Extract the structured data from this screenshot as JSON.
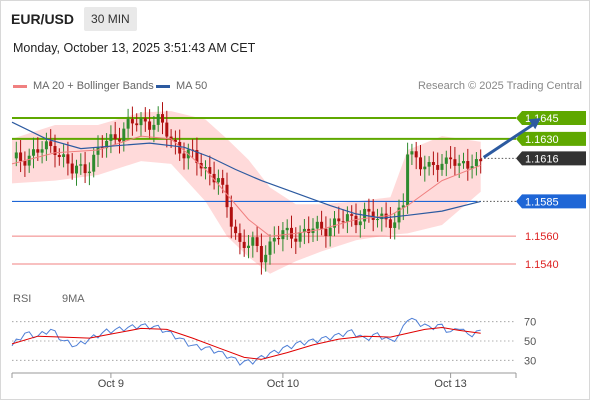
{
  "header": {
    "symbol": "EUR/USD",
    "timeframe": "30 MIN"
  },
  "datetime": "Monday, October 13, 2025 3:51:43 AM CET",
  "legend": [
    {
      "label": "MA 20 + Bollinger Bands",
      "color": "#f08080"
    },
    {
      "label": "MA 50",
      "color": "#2c5aa0"
    }
  ],
  "copyright": "Research © 2025 Trading Central",
  "rsi_legend": [
    {
      "label": "RSI",
      "color": "#4f7fd6"
    },
    {
      "label": "9MA",
      "color": "#e00000"
    }
  ],
  "colors": {
    "up": "#2e8b2e",
    "down": "#b01010",
    "bollinger": "#ffd6d6",
    "resistance": "#5fa800",
    "support_blue": "#1e66d6",
    "support_red": "#f08080",
    "current": "#333333",
    "arrow": "#2c5aa0"
  },
  "chart_data": [
    {
      "type": "candlestick",
      "title": "EUR/USD",
      "timeframe": "30 MIN",
      "ylim": [
        1.1527,
        1.1658
      ],
      "x_ticks": [
        "Oct 9",
        "Oct 10",
        "Oct 13"
      ],
      "current_price": "1.1616",
      "price_levels": [
        {
          "label": "1.1645",
          "value": 1.1645,
          "kind": "resistance"
        },
        {
          "label": "1.1630",
          "value": 1.163,
          "kind": "resistance"
        },
        {
          "label": "1.1616",
          "value": 1.1616,
          "kind": "current"
        },
        {
          "label": "1.1585",
          "value": 1.1585,
          "kind": "pivot"
        },
        {
          "label": "1.1560",
          "value": 1.156,
          "kind": "support"
        },
        {
          "label": "1.1540",
          "value": 1.154,
          "kind": "support"
        }
      ],
      "close_path": [
        [
          0,
          1.1613
        ],
        [
          5,
          1.162
        ],
        [
          10,
          1.1625
        ],
        [
          14,
          1.1606
        ],
        [
          18,
          1.1612
        ],
        [
          22,
          1.1628
        ],
        [
          26,
          1.1637
        ],
        [
          30,
          1.1643
        ],
        [
          34,
          1.1642
        ],
        [
          37,
          1.163
        ],
        [
          40,
          1.162
        ],
        [
          44,
          1.1612
        ],
        [
          48,
          1.16
        ],
        [
          50,
          1.158
        ],
        [
          53,
          1.1555
        ],
        [
          56,
          1.1553
        ],
        [
          58,
          1.1546
        ],
        [
          61,
          1.1559
        ],
        [
          66,
          1.1562
        ],
        [
          70,
          1.1564
        ],
        [
          74,
          1.1568
        ],
        [
          78,
          1.1572
        ],
        [
          82,
          1.1576
        ],
        [
          85,
          1.1571
        ],
        [
          87,
          1.1576
        ],
        [
          89,
          1.1568
        ],
        [
          91,
          1.1582
        ],
        [
          92,
          1.162
        ],
        [
          94,
          1.1618
        ],
        [
          97,
          1.1607
        ],
        [
          100,
          1.1612
        ],
        [
          102,
          1.162
        ],
        [
          104,
          1.1607
        ],
        [
          107,
          1.1613
        ],
        [
          109,
          1.1616
        ]
      ],
      "ma20": [
        [
          0,
          1.1612
        ],
        [
          10,
          1.162
        ],
        [
          20,
          1.1622
        ],
        [
          30,
          1.1632
        ],
        [
          37,
          1.163
        ],
        [
          45,
          1.1608
        ],
        [
          50,
          1.159
        ],
        [
          55,
          1.1572
        ],
        [
          60,
          1.156
        ],
        [
          66,
          1.1562
        ],
        [
          72,
          1.1565
        ],
        [
          80,
          1.1572
        ],
        [
          88,
          1.1575
        ],
        [
          92,
          1.1582
        ],
        [
          100,
          1.16
        ],
        [
          109,
          1.1611
        ]
      ],
      "bollinger_upper": [
        [
          0,
          1.163
        ],
        [
          10,
          1.164
        ],
        [
          20,
          1.164
        ],
        [
          30,
          1.1649
        ],
        [
          37,
          1.165
        ],
        [
          45,
          1.1644
        ],
        [
          50,
          1.163
        ],
        [
          55,
          1.1615
        ],
        [
          60,
          1.1595
        ],
        [
          66,
          1.1583
        ],
        [
          72,
          1.1583
        ],
        [
          80,
          1.1585
        ],
        [
          88,
          1.1588
        ],
        [
          92,
          1.1622
        ],
        [
          100,
          1.1632
        ],
        [
          109,
          1.1628
        ]
      ],
      "bollinger_lower": [
        [
          0,
          1.1598
        ],
        [
          10,
          1.16
        ],
        [
          20,
          1.1604
        ],
        [
          30,
          1.1614
        ],
        [
          37,
          1.1612
        ],
        [
          45,
          1.1585
        ],
        [
          50,
          1.156
        ],
        [
          55,
          1.1545
        ],
        [
          60,
          1.1533
        ],
        [
          66,
          1.1542
        ],
        [
          72,
          1.1549
        ],
        [
          80,
          1.1557
        ],
        [
          88,
          1.1561
        ],
        [
          92,
          1.1562
        ],
        [
          100,
          1.1568
        ],
        [
          109,
          1.1592
        ]
      ],
      "ma50": [
        [
          0,
          1.1642
        ],
        [
          8,
          1.163
        ],
        [
          16,
          1.1623
        ],
        [
          24,
          1.1625
        ],
        [
          32,
          1.1627
        ],
        [
          40,
          1.1624
        ],
        [
          46,
          1.1617
        ],
        [
          52,
          1.1608
        ],
        [
          58,
          1.16
        ],
        [
          66,
          1.1591
        ],
        [
          74,
          1.1582
        ],
        [
          80,
          1.1576
        ],
        [
          86,
          1.1573
        ],
        [
          92,
          1.1575
        ],
        [
          100,
          1.1578
        ],
        [
          109,
          1.1585
        ]
      ],
      "forecast_arrow": {
        "from": [
          109,
          1.1616
        ],
        "to": [
          123,
          1.1645
        ]
      }
    },
    {
      "type": "line",
      "title": "RSI",
      "ylim": [
        20,
        80
      ],
      "yticks": [
        30,
        50,
        70
      ],
      "series": [
        {
          "name": "RSI",
          "values": [
            [
              0,
              45
            ],
            [
              3,
              58
            ],
            [
              6,
              55
            ],
            [
              9,
              62
            ],
            [
              12,
              50
            ],
            [
              15,
              45
            ],
            [
              18,
              52
            ],
            [
              22,
              60
            ],
            [
              26,
              63
            ],
            [
              30,
              66
            ],
            [
              34,
              64
            ],
            [
              38,
              55
            ],
            [
              42,
              45
            ],
            [
              46,
              42
            ],
            [
              50,
              35
            ],
            [
              53,
              28
            ],
            [
              56,
              29
            ],
            [
              59,
              35
            ],
            [
              63,
              42
            ],
            [
              67,
              48
            ],
            [
              71,
              51
            ],
            [
              75,
              55
            ],
            [
              79,
              60
            ],
            [
              82,
              52
            ],
            [
              85,
              57
            ],
            [
              88,
              50
            ],
            [
              90,
              55
            ],
            [
              92,
              74
            ],
            [
              94,
              70
            ],
            [
              97,
              64
            ],
            [
              100,
              66
            ],
            [
              102,
              58
            ],
            [
              104,
              65
            ],
            [
              106,
              56
            ],
            [
              109,
              60
            ]
          ]
        },
        {
          "name": "9MA",
          "values": [
            [
              0,
              47
            ],
            [
              6,
              55
            ],
            [
              12,
              54
            ],
            [
              18,
              53
            ],
            [
              24,
              58
            ],
            [
              30,
              63
            ],
            [
              36,
              62
            ],
            [
              42,
              53
            ],
            [
              48,
              43
            ],
            [
              54,
              33
            ],
            [
              58,
              31
            ],
            [
              64,
              38
            ],
            [
              70,
              46
            ],
            [
              76,
              52
            ],
            [
              82,
              55
            ],
            [
              88,
              54
            ],
            [
              92,
              58
            ],
            [
              96,
              62
            ],
            [
              100,
              64
            ],
            [
              104,
              61
            ],
            [
              109,
              58
            ]
          ]
        }
      ]
    }
  ]
}
